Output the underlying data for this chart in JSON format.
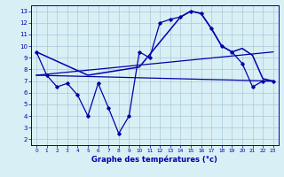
{
  "title": "Graphe des températures (°c)",
  "bg_color": "#d8f0f5",
  "grid_color": "#a8c8d8",
  "line_color": "#0000aa",
  "xlim": [
    -0.5,
    23.5
  ],
  "ylim": [
    1.5,
    13.5
  ],
  "xticks": [
    0,
    1,
    2,
    3,
    4,
    5,
    6,
    7,
    8,
    9,
    10,
    11,
    12,
    13,
    14,
    15,
    16,
    17,
    18,
    19,
    20,
    21,
    22,
    23
  ],
  "yticks": [
    2,
    3,
    4,
    5,
    6,
    7,
    8,
    9,
    10,
    11,
    12,
    13
  ],
  "main_line_x": [
    0,
    1,
    2,
    3,
    4,
    5,
    6,
    7,
    8,
    9,
    10,
    11,
    12,
    13,
    14,
    15,
    16,
    17,
    18,
    19,
    20,
    21,
    22,
    23
  ],
  "main_line_y": [
    9.5,
    7.5,
    6.5,
    6.8,
    5.8,
    4.0,
    6.8,
    4.7,
    2.5,
    4.0,
    9.5,
    9.0,
    12.0,
    12.3,
    12.5,
    13.0,
    12.8,
    11.5,
    10.0,
    9.5,
    8.5,
    6.5,
    7.0,
    7.0
  ],
  "arc_line_x": [
    0,
    5,
    10,
    14,
    15,
    16,
    17,
    18,
    19,
    20,
    21,
    22,
    23
  ],
  "arc_line_y": [
    9.5,
    7.5,
    8.2,
    12.5,
    13.0,
    12.8,
    11.5,
    10.0,
    9.5,
    9.8,
    9.2,
    7.2,
    7.0
  ],
  "flat_line_x": [
    0,
    23
  ],
  "flat_line_y": [
    7.5,
    7.0
  ],
  "diag_line_x": [
    0,
    23
  ],
  "diag_line_y": [
    7.5,
    9.5
  ],
  "xlabel_fontsize": 6.0,
  "tick_fontsize_x": 4.2,
  "tick_fontsize_y": 5.0
}
